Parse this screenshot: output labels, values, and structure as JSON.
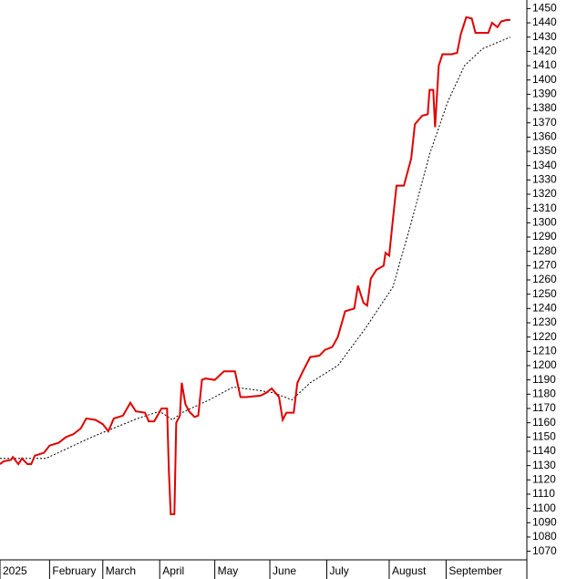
{
  "chart_data": {
    "type": "line",
    "xlim": [
      0,
      287
    ],
    "xticks": [
      {
        "value": 0,
        "label": "2025"
      },
      {
        "value": 27,
        "label": "February"
      },
      {
        "value": 56,
        "label": "March"
      },
      {
        "value": 87,
        "label": "April"
      },
      {
        "value": 117,
        "label": "May"
      },
      {
        "value": 147,
        "label": "June"
      },
      {
        "value": 178,
        "label": "July"
      },
      {
        "value": 212,
        "label": "August"
      },
      {
        "value": 243,
        "label": "September"
      }
    ],
    "ylim": [
      1064,
      1456
    ],
    "yticks": [
      1070,
      1080,
      1090,
      1100,
      1110,
      1120,
      1130,
      1140,
      1150,
      1160,
      1170,
      1180,
      1190,
      1200,
      1210,
      1220,
      1230,
      1240,
      1250,
      1260,
      1270,
      1280,
      1290,
      1300,
      1310,
      1320,
      1330,
      1340,
      1350,
      1360,
      1370,
      1380,
      1390,
      1400,
      1410,
      1420,
      1430,
      1440,
      1450
    ],
    "series": [
      {
        "color": "#e00000",
        "dash": false,
        "x": [
          0,
          2,
          6,
          7,
          10,
          12,
          15,
          17,
          19,
          24,
          27,
          32,
          36,
          40,
          44,
          47,
          52,
          56,
          59,
          62,
          67,
          71,
          74,
          79,
          81,
          84,
          88,
          91,
          92,
          93,
          95,
          96,
          98,
          99,
          101,
          103,
          106,
          108,
          110,
          112,
          117,
          122,
          128,
          131,
          134,
          142,
          145,
          148,
          152,
          154,
          156,
          160,
          162,
          165,
          169,
          174,
          177,
          181,
          184,
          188,
          193,
          195,
          198,
          200,
          202,
          205,
          209,
          210,
          212,
          214,
          216,
          220,
          224,
          226,
          230,
          233,
          234,
          236,
          237,
          239,
          241,
          246,
          249,
          251,
          254,
          257,
          259,
          266,
          268,
          271,
          273,
          276,
          278
        ],
        "values": [
          1131,
          1133,
          1134,
          1136,
          1131,
          1135,
          1131,
          1131,
          1137,
          1139,
          1144,
          1146,
          1150,
          1152,
          1156,
          1163,
          1162,
          1159,
          1154,
          1163,
          1165,
          1174,
          1168,
          1167,
          1161,
          1161,
          1170,
          1170,
          1126,
          1096,
          1096,
          1160,
          1165,
          1188,
          1173,
          1168,
          1164,
          1165,
          1190,
          1191,
          1190,
          1196,
          1196,
          1178,
          1178,
          1179,
          1181,
          1184,
          1178,
          1162,
          1167,
          1167,
          1188,
          1196,
          1206,
          1207,
          1211,
          1213,
          1220,
          1238,
          1240,
          1256,
          1244,
          1242,
          1261,
          1267,
          1270,
          1279,
          1277,
          1302,
          1326,
          1326,
          1345,
          1369,
          1375,
          1376,
          1393,
          1393,
          1367,
          1410,
          1418,
          1418,
          1419,
          1432,
          1444,
          1443,
          1433,
          1433,
          1440,
          1437,
          1441,
          1442,
          1442
        ]
      },
      {
        "color": "#000000",
        "dash": true,
        "x": [
          0,
          25,
          50,
          75,
          87,
          94,
          99,
          114,
          127,
          139,
          149,
          159,
          169,
          184,
          199,
          214,
          224,
          234,
          244,
          253,
          263,
          278
        ],
        "values": [
          1135,
          1135,
          1150,
          1163,
          1168,
          1162,
          1167,
          1176,
          1185,
          1183,
          1181,
          1176,
          1188,
          1200,
          1226,
          1255,
          1300,
          1348,
          1385,
          1410,
          1422,
          1430
        ]
      }
    ]
  }
}
